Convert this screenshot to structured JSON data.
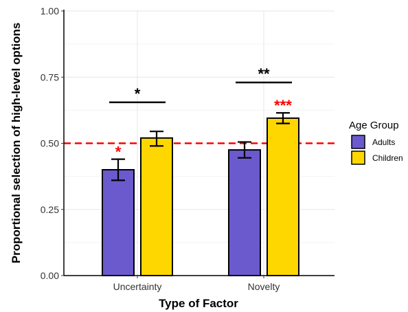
{
  "chart_data": {
    "type": "bar",
    "title": "",
    "xlabel": "Type of Factor",
    "ylabel": "Proportional selection of high-level options",
    "categories": [
      "Uncertainty",
      "Novelty"
    ],
    "series": [
      {
        "name": "Adults",
        "color": "#6a5acd",
        "values": [
          0.4,
          0.475
        ],
        "error_low": [
          0.36,
          0.445
        ],
        "error_high": [
          0.44,
          0.505
        ],
        "significance": [
          "*",
          ""
        ]
      },
      {
        "name": "Children",
        "color": "#ffd700",
        "values": [
          0.52,
          0.595
        ],
        "error_low": [
          0.49,
          0.575
        ],
        "error_high": [
          0.545,
          0.615
        ],
        "significance": [
          "",
          "***"
        ]
      }
    ],
    "ylim": [
      0,
      1
    ],
    "yticks": [
      "0.00",
      "0.25",
      "0.50",
      "0.75",
      "1.00"
    ],
    "ytick_values": [
      0,
      0.25,
      0.5,
      0.75,
      1.0
    ],
    "reference_line": {
      "value": 0.5,
      "color": "#ff0000",
      "style": "dashed"
    },
    "comparisons": [
      {
        "category": "Uncertainty",
        "label": "*",
        "y": 0.655
      },
      {
        "category": "Novelty",
        "label": "**",
        "y": 0.73
      }
    ],
    "legend": {
      "title": "Age Group",
      "position": "right"
    },
    "grid": true,
    "significance_color": "#ff0000"
  }
}
